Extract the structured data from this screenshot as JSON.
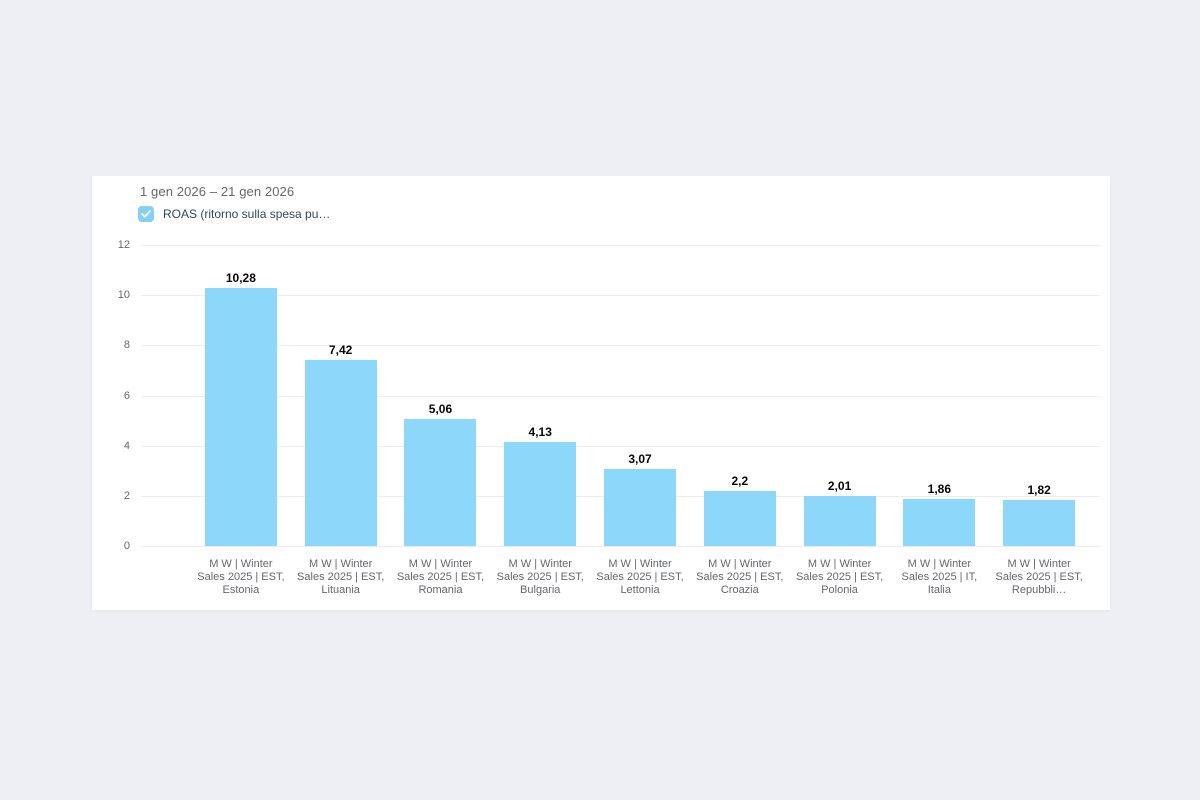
{
  "page": {
    "background_color": "#edeff4",
    "card_color": "#ffffff"
  },
  "header": {
    "date_range": "1 gen 2026 – 21 gen 2026"
  },
  "legend": {
    "label": "ROAS (ritorno sulla spesa pu…",
    "checkbox_checked": true,
    "checkbox_color": "#85cff5",
    "check_icon": "check-mark"
  },
  "chart_data": {
    "type": "bar",
    "title": "",
    "xlabel": "",
    "ylabel": "",
    "categories": [
      "M W | Winter Sales 2025 | EST, Estonia",
      "M W | Winter Sales 2025 | EST, Lituania",
      "M W | Winter Sales 2025 | EST, Romania",
      "M W | Winter Sales 2025 | EST, Bulgaria",
      "M W | Winter Sales 2025 | EST, Lettonia",
      "M W | Winter Sales 2025 | EST, Croazia",
      "M W | Winter Sales 2025 | EST, Polonia",
      "M W | Winter Sales 2025 | IT, Italia",
      "M W | Winter Sales 2025 | EST, Repubbli…"
    ],
    "values": [
      10.28,
      7.42,
      5.06,
      4.13,
      3.07,
      2.2,
      2.01,
      1.86,
      1.82
    ],
    "value_labels": [
      "10,28",
      "7,42",
      "5,06",
      "4,13",
      "3,07",
      "2,2",
      "2,01",
      "1,86",
      "1,82"
    ],
    "series_name": "ROAS (ritorno sulla spesa pu…)",
    "ylim": [
      0,
      12
    ],
    "yticks": [
      0,
      2,
      4,
      6,
      8,
      10,
      12
    ],
    "bar_color": "#8dd8fa",
    "grid": true,
    "legend_position": "top-left"
  }
}
